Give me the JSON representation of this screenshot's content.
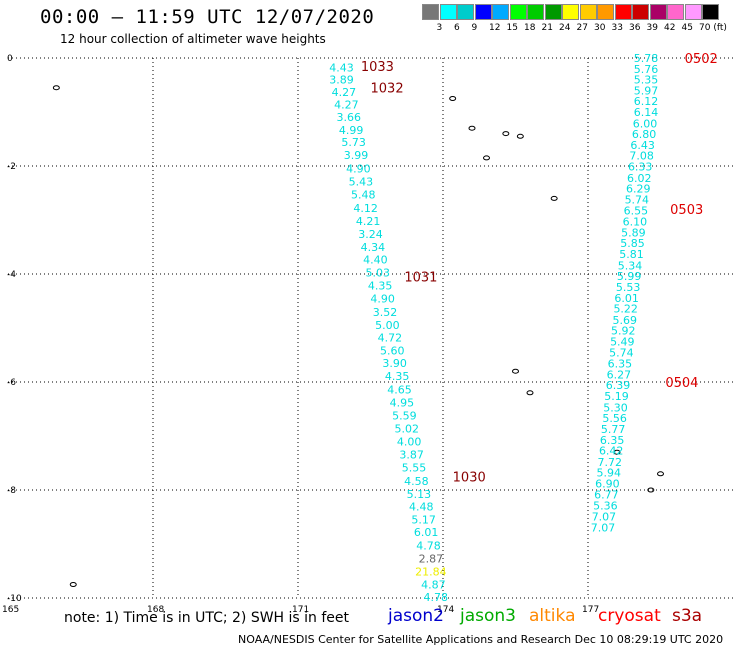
{
  "header": {
    "title": "00:00 – 11:59 UTC 12/07/2020",
    "subtitle": "12 hour collection of altimeter wave heights"
  },
  "footer": {
    "note": "note: 1) Time is in UTC; 2) SWH is in feet",
    "credit": "NOAA/NESDIS Center for Satellite Applications and Research    Dec 10 08:29:19 UTC 2020"
  },
  "satellites": [
    {
      "name": "jason2",
      "color": "#0000cc"
    },
    {
      "name": "jason3",
      "color": "#00aa00"
    },
    {
      "name": "altika",
      "color": "#ff8800"
    },
    {
      "name": "cryosat",
      "color": "#ff0000"
    },
    {
      "name": "s3a",
      "color": "#aa0000"
    }
  ],
  "legend": {
    "labels": [
      "3",
      "6",
      "9",
      "12",
      "15",
      "18",
      "21",
      "24",
      "27",
      "30",
      "33",
      "36",
      "39",
      "42",
      "45",
      "70 (ft)"
    ],
    "colors": [
      "#777777",
      "#00ffff",
      "#00cccc",
      "#0000ff",
      "#00aaff",
      "#00ff00",
      "#00cc00",
      "#009900",
      "#ffff00",
      "#ffcc00",
      "#ff9900",
      "#ff0000",
      "#cc0000",
      "#aa0066",
      "#ff66cc",
      "#ff99ff",
      "#000000"
    ]
  },
  "chart_data": {
    "type": "scatter",
    "title": "00:00 – 11:59 UTC 12/07/2020",
    "subtitle": "12 hour collection of altimeter wave heights",
    "xlim": [
      165,
      180
    ],
    "ylim": [
      -10,
      0
    ],
    "x_ticks": [
      165,
      168,
      171,
      174,
      177
    ],
    "y_ticks": [
      0,
      -2,
      -4,
      -6,
      -8,
      -10
    ],
    "grid": true,
    "units": "ft",
    "tracks": [
      {
        "name": "track-west",
        "color": "#00dddd",
        "points": [
          {
            "x": 171.9,
            "y": -0.18,
            "v": "4.43"
          },
          {
            "x": 171.9,
            "y": -0.4,
            "v": "3.89"
          },
          {
            "x": 171.95,
            "y": -0.63,
            "v": "4.27"
          },
          {
            "x": 172.0,
            "y": -0.86,
            "v": "4.27"
          },
          {
            "x": 172.05,
            "y": -1.09,
            "v": "3.66"
          },
          {
            "x": 172.1,
            "y": -1.33,
            "v": "4.99"
          },
          {
            "x": 172.15,
            "y": -1.56,
            "v": "5.73"
          },
          {
            "x": 172.2,
            "y": -1.8,
            "v": "3.99"
          },
          {
            "x": 172.25,
            "y": -2.05,
            "v": "4.90"
          },
          {
            "x": 172.3,
            "y": -2.29,
            "v": "5.43"
          },
          {
            "x": 172.35,
            "y": -2.53,
            "v": "5.48"
          },
          {
            "x": 172.4,
            "y": -2.78,
            "v": "4.12"
          },
          {
            "x": 172.45,
            "y": -3.02,
            "v": "4.21"
          },
          {
            "x": 172.5,
            "y": -3.26,
            "v": "3.24"
          },
          {
            "x": 172.55,
            "y": -3.5,
            "v": "4.34"
          },
          {
            "x": 172.6,
            "y": -3.73,
            "v": "4.40"
          },
          {
            "x": 172.65,
            "y": -3.97,
            "v": "5.03"
          },
          {
            "x": 172.7,
            "y": -4.21,
            "v": "4.35"
          },
          {
            "x": 172.75,
            "y": -4.45,
            "v": "4.90"
          },
          {
            "x": 172.8,
            "y": -4.7,
            "v": "3.52"
          },
          {
            "x": 172.85,
            "y": -4.94,
            "v": "5.00"
          },
          {
            "x": 172.9,
            "y": -5.18,
            "v": "4.72"
          },
          {
            "x": 172.95,
            "y": -5.42,
            "v": "5.60"
          },
          {
            "x": 173.0,
            "y": -5.65,
            "v": "3.90"
          },
          {
            "x": 173.05,
            "y": -5.89,
            "v": "4.35"
          },
          {
            "x": 173.1,
            "y": -6.14,
            "v": "4.65"
          },
          {
            "x": 173.15,
            "y": -6.38,
            "v": "4.95"
          },
          {
            "x": 173.2,
            "y": -6.62,
            "v": "5.59"
          },
          {
            "x": 173.25,
            "y": -6.86,
            "v": "5.02"
          },
          {
            "x": 173.3,
            "y": -7.1,
            "v": "4.00"
          },
          {
            "x": 173.35,
            "y": -7.34,
            "v": "3.87"
          },
          {
            "x": 173.4,
            "y": -7.58,
            "v": "5.55"
          },
          {
            "x": 173.45,
            "y": -7.83,
            "v": "4.58"
          },
          {
            "x": 173.5,
            "y": -8.07,
            "v": "5.13"
          },
          {
            "x": 173.55,
            "y": -8.31,
            "v": "4.48"
          },
          {
            "x": 173.6,
            "y": -8.55,
            "v": "5.17"
          },
          {
            "x": 173.65,
            "y": -8.78,
            "v": "6.01"
          },
          {
            "x": 173.7,
            "y": -9.03,
            "v": "4.78"
          },
          {
            "x": 173.75,
            "y": -9.27,
            "v": "2.87",
            "color": "#666666"
          },
          {
            "x": 173.75,
            "y": -9.51,
            "v": "21.84",
            "color": "#eeee00"
          },
          {
            "x": 173.8,
            "y": -9.75,
            "v": "4.87"
          },
          {
            "x": 173.85,
            "y": -9.98,
            "v": "4.78"
          }
        ]
      },
      {
        "name": "track-east",
        "color": "#00dddd",
        "points": [
          {
            "x": 178.2,
            "y": 0.0,
            "v": "5.78"
          },
          {
            "x": 178.2,
            "y": -0.2,
            "v": "5.76"
          },
          {
            "x": 178.2,
            "y": -0.4,
            "v": "5.35"
          },
          {
            "x": 178.2,
            "y": -0.6,
            "v": "5.97"
          },
          {
            "x": 178.2,
            "y": -0.8,
            "v": "6.12"
          },
          {
            "x": 178.2,
            "y": -1.0,
            "v": "6.14"
          },
          {
            "x": 178.18,
            "y": -1.21,
            "v": "6.00"
          },
          {
            "x": 178.16,
            "y": -1.41,
            "v": "6.80"
          },
          {
            "x": 178.13,
            "y": -1.61,
            "v": "6.43"
          },
          {
            "x": 178.11,
            "y": -1.81,
            "v": "7.08"
          },
          {
            "x": 178.08,
            "y": -2.01,
            "v": "6.33"
          },
          {
            "x": 178.06,
            "y": -2.22,
            "v": "6.02"
          },
          {
            "x": 178.04,
            "y": -2.42,
            "v": "6.29"
          },
          {
            "x": 178.01,
            "y": -2.62,
            "v": "5.74"
          },
          {
            "x": 177.99,
            "y": -2.82,
            "v": "6.55"
          },
          {
            "x": 177.97,
            "y": -3.03,
            "v": "6.10"
          },
          {
            "x": 177.94,
            "y": -3.23,
            "v": "5.89"
          },
          {
            "x": 177.92,
            "y": -3.43,
            "v": "5.85"
          },
          {
            "x": 177.9,
            "y": -3.63,
            "v": "5.81"
          },
          {
            "x": 177.87,
            "y": -3.84,
            "v": "5.34"
          },
          {
            "x": 177.85,
            "y": -4.04,
            "v": "5.99"
          },
          {
            "x": 177.83,
            "y": -4.24,
            "v": "5.53"
          },
          {
            "x": 177.8,
            "y": -4.44,
            "v": "6.01"
          },
          {
            "x": 177.78,
            "y": -4.64,
            "v": "5.22"
          },
          {
            "x": 177.76,
            "y": -4.85,
            "v": "5.69"
          },
          {
            "x": 177.73,
            "y": -5.05,
            "v": "5.92"
          },
          {
            "x": 177.71,
            "y": -5.25,
            "v": "5.49"
          },
          {
            "x": 177.69,
            "y": -5.45,
            "v": "5.74"
          },
          {
            "x": 177.66,
            "y": -5.66,
            "v": "6.35"
          },
          {
            "x": 177.64,
            "y": -5.86,
            "v": "6.27"
          },
          {
            "x": 177.62,
            "y": -6.06,
            "v": "6.39"
          },
          {
            "x": 177.59,
            "y": -6.26,
            "v": "5.19"
          },
          {
            "x": 177.57,
            "y": -6.47,
            "v": "5.30"
          },
          {
            "x": 177.55,
            "y": -6.67,
            "v": "5.56"
          },
          {
            "x": 177.52,
            "y": -6.87,
            "v": "5.77"
          },
          {
            "x": 177.5,
            "y": -7.07,
            "v": "6.35"
          },
          {
            "x": 177.48,
            "y": -7.27,
            "v": "6.42"
          },
          {
            "x": 177.45,
            "y": -7.48,
            "v": "7.72"
          },
          {
            "x": 177.43,
            "y": -7.68,
            "v": "5.94"
          },
          {
            "x": 177.4,
            "y": -7.88,
            "v": "6.90"
          },
          {
            "x": 177.38,
            "y": -8.08,
            "v": "6.77"
          },
          {
            "x": 177.36,
            "y": -8.29,
            "v": "5.36"
          },
          {
            "x": 177.33,
            "y": -8.49,
            "v": "7.07"
          },
          {
            "x": 177.31,
            "y": -8.69,
            "v": "7.07"
          }
        ]
      }
    ],
    "time_markers": [
      {
        "label": "1033",
        "x": 172.3,
        "y": -0.15,
        "color": "#880000"
      },
      {
        "label": "1032",
        "x": 172.5,
        "y": -0.55,
        "color": "#880000"
      },
      {
        "label": "1031",
        "x": 173.2,
        "y": -4.05,
        "color": "#880000"
      },
      {
        "label": "1030",
        "x": 174.2,
        "y": -7.75,
        "color": "#880000"
      },
      {
        "label": "0502",
        "x": 179.0,
        "y": 0.0,
        "color": "#dd0000"
      },
      {
        "label": "0503",
        "x": 178.7,
        "y": -2.8,
        "color": "#dd0000"
      },
      {
        "label": "0504",
        "x": 178.6,
        "y": -6.0,
        "color": "#dd0000"
      }
    ],
    "islands": [
      {
        "x": 166.0,
        "y": -0.55
      },
      {
        "x": 174.2,
        "y": -0.75
      },
      {
        "x": 174.6,
        "y": -1.3
      },
      {
        "x": 175.3,
        "y": -1.4
      },
      {
        "x": 175.6,
        "y": -1.45
      },
      {
        "x": 174.9,
        "y": -1.85
      },
      {
        "x": 176.3,
        "y": -2.6
      },
      {
        "x": 175.5,
        "y": -5.8
      },
      {
        "x": 175.8,
        "y": -6.2
      },
      {
        "x": 177.6,
        "y": -7.3
      },
      {
        "x": 178.5,
        "y": -7.7
      },
      {
        "x": 178.3,
        "y": -8.0
      },
      {
        "x": 166.35,
        "y": -9.75
      }
    ]
  }
}
